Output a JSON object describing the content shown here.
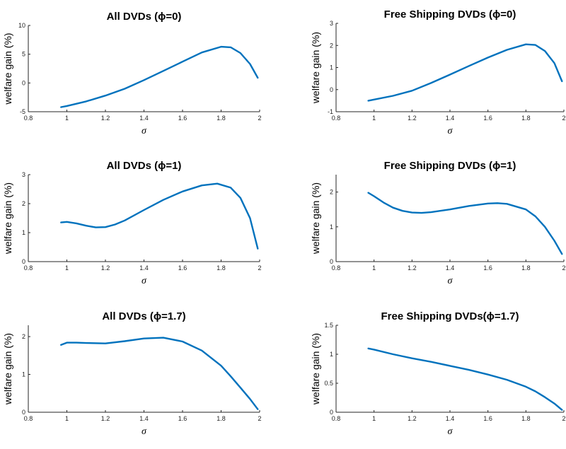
{
  "colors": {
    "line": "#0072BD",
    "axis": "#262626"
  },
  "chart_data": [
    {
      "type": "line",
      "title": "All DVDs (ϕ=0)",
      "xlabel": "σ",
      "ylabel": "welfare gain (%)",
      "xlim": [
        0.8,
        2
      ],
      "ylim": [
        -5,
        10
      ],
      "xticks": [
        0.8,
        1,
        1.2,
        1.4,
        1.6,
        1.8,
        2
      ],
      "yticks": [
        -5,
        0,
        5,
        10
      ],
      "series": [
        {
          "x": [
            0.97,
            1.0,
            1.1,
            1.2,
            1.3,
            1.4,
            1.5,
            1.6,
            1.7,
            1.8,
            1.85,
            1.9,
            1.95,
            1.99
          ],
          "y": [
            -4.2,
            -4.0,
            -3.2,
            -2.2,
            -1.0,
            0.5,
            2.1,
            3.7,
            5.3,
            6.3,
            6.2,
            5.2,
            3.3,
            0.9
          ]
        }
      ]
    },
    {
      "type": "line",
      "title": "Free Shipping DVDs (ϕ=0)",
      "xlabel": "σ",
      "ylabel": "welfare gain (%)",
      "xlim": [
        0.8,
        2
      ],
      "ylim": [
        -1,
        3
      ],
      "xticks": [
        0.8,
        1,
        1.2,
        1.4,
        1.6,
        1.8,
        2
      ],
      "yticks": [
        -1,
        0,
        1,
        2,
        3
      ],
      "series": [
        {
          "x": [
            0.97,
            1.0,
            1.1,
            1.2,
            1.3,
            1.4,
            1.5,
            1.6,
            1.7,
            1.8,
            1.85,
            1.9,
            1.95,
            1.99
          ],
          "y": [
            -0.5,
            -0.45,
            -0.28,
            -0.05,
            0.3,
            0.68,
            1.07,
            1.45,
            1.8,
            2.05,
            2.02,
            1.75,
            1.2,
            0.38
          ]
        }
      ]
    },
    {
      "type": "line",
      "title": "All DVDs (ϕ=1)",
      "xlabel": "σ",
      "ylabel": "welfare gain (%)",
      "xlim": [
        0.8,
        2
      ],
      "ylim": [
        0,
        3
      ],
      "xticks": [
        0.8,
        1,
        1.2,
        1.4,
        1.6,
        1.8,
        2
      ],
      "yticks": [
        0,
        1,
        2,
        3
      ],
      "series": [
        {
          "x": [
            0.97,
            1.0,
            1.05,
            1.1,
            1.15,
            1.2,
            1.25,
            1.3,
            1.4,
            1.5,
            1.6,
            1.7,
            1.78,
            1.85,
            1.9,
            1.95,
            1.99
          ],
          "y": [
            1.35,
            1.37,
            1.32,
            1.24,
            1.18,
            1.19,
            1.28,
            1.42,
            1.78,
            2.13,
            2.42,
            2.63,
            2.69,
            2.55,
            2.2,
            1.5,
            0.45
          ]
        }
      ]
    },
    {
      "type": "line",
      "title": "Free Shipping DVDs (ϕ=1)",
      "xlabel": "σ",
      "ylabel": "welfare gain (%)",
      "xlim": [
        0.8,
        2
      ],
      "ylim": [
        0,
        2.5
      ],
      "xticks": [
        0.8,
        1,
        1.2,
        1.4,
        1.6,
        1.8,
        2
      ],
      "yticks": [
        0,
        1,
        2
      ],
      "series": [
        {
          "x": [
            0.97,
            1.0,
            1.05,
            1.1,
            1.15,
            1.2,
            1.25,
            1.3,
            1.4,
            1.5,
            1.6,
            1.65,
            1.7,
            1.8,
            1.85,
            1.9,
            1.95,
            1.99
          ],
          "y": [
            1.98,
            1.88,
            1.7,
            1.55,
            1.46,
            1.41,
            1.4,
            1.42,
            1.5,
            1.6,
            1.67,
            1.68,
            1.66,
            1.5,
            1.3,
            1.0,
            0.6,
            0.22
          ]
        }
      ]
    },
    {
      "type": "line",
      "title": "All DVDs (ϕ=1.7)",
      "xlabel": "σ",
      "ylabel": "welfare gain (%)",
      "xlim": [
        0.8,
        2
      ],
      "ylim": [
        0,
        2.3
      ],
      "xticks": [
        0.8,
        1,
        1.2,
        1.4,
        1.6,
        1.8,
        2
      ],
      "yticks": [
        0,
        1,
        2
      ],
      "series": [
        {
          "x": [
            0.97,
            1.0,
            1.05,
            1.1,
            1.2,
            1.3,
            1.4,
            1.5,
            1.6,
            1.7,
            1.8,
            1.85,
            1.9,
            1.95,
            1.99
          ],
          "y": [
            1.78,
            1.84,
            1.84,
            1.83,
            1.82,
            1.88,
            1.95,
            1.97,
            1.87,
            1.63,
            1.23,
            0.95,
            0.65,
            0.35,
            0.08
          ]
        }
      ]
    },
    {
      "type": "line",
      "title": "Free Shipping DVDs(ϕ=1.7)",
      "xlabel": "σ",
      "ylabel": "welfare gain (%)",
      "xlim": [
        0.8,
        2
      ],
      "ylim": [
        0,
        1.5
      ],
      "xticks": [
        0.8,
        1,
        1.2,
        1.4,
        1.6,
        1.8,
        2
      ],
      "yticks": [
        0,
        0.5,
        1,
        1.5
      ],
      "series": [
        {
          "x": [
            0.97,
            1.0,
            1.1,
            1.2,
            1.3,
            1.4,
            1.5,
            1.6,
            1.7,
            1.8,
            1.85,
            1.9,
            1.95,
            1.99
          ],
          "y": [
            1.1,
            1.08,
            1.0,
            0.93,
            0.87,
            0.8,
            0.73,
            0.65,
            0.56,
            0.44,
            0.36,
            0.26,
            0.15,
            0.04
          ]
        }
      ]
    }
  ]
}
